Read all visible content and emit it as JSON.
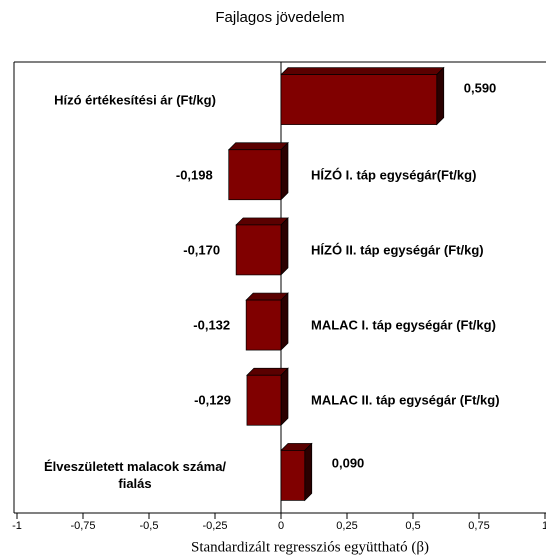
{
  "chart_data": {
    "type": "bar",
    "orientation": "horizontal",
    "title": "Fajlagos jövedelem",
    "x_label": "Standardizált regressziós együttható (β)",
    "categories": [
      "Hízó értékesítési ár (Ft/kg)",
      "HÍZÓ I. táp egységár(Ft/kg)",
      "HÍZÓ II. táp egységár (Ft/kg)",
      "MALAC I. táp egységár (Ft/kg)",
      "MALAC II. táp egységár (Ft/kg)",
      "Élveszületett malacok száma/ fialás"
    ],
    "values": [
      0.59,
      -0.198,
      -0.17,
      -0.132,
      -0.129,
      0.09
    ],
    "value_labels": [
      "0,590",
      "-0,198",
      "-0,170",
      "-0,132",
      "-0,129",
      "0,090"
    ],
    "color": "#800000",
    "xlim": [
      -1,
      1
    ],
    "xticks": [
      {
        "value": -1,
        "label": "-1"
      },
      {
        "value": -0.75,
        "label": "-0,75"
      },
      {
        "value": -0.5,
        "label": "-0,5"
      },
      {
        "value": -0.25,
        "label": "-0,25"
      },
      0,
      {
        "value": 0.25,
        "label": "0,25"
      },
      {
        "value": 0.5,
        "label": "0,5"
      },
      {
        "value": 0.75,
        "label": "0,75"
      },
      1
    ]
  }
}
